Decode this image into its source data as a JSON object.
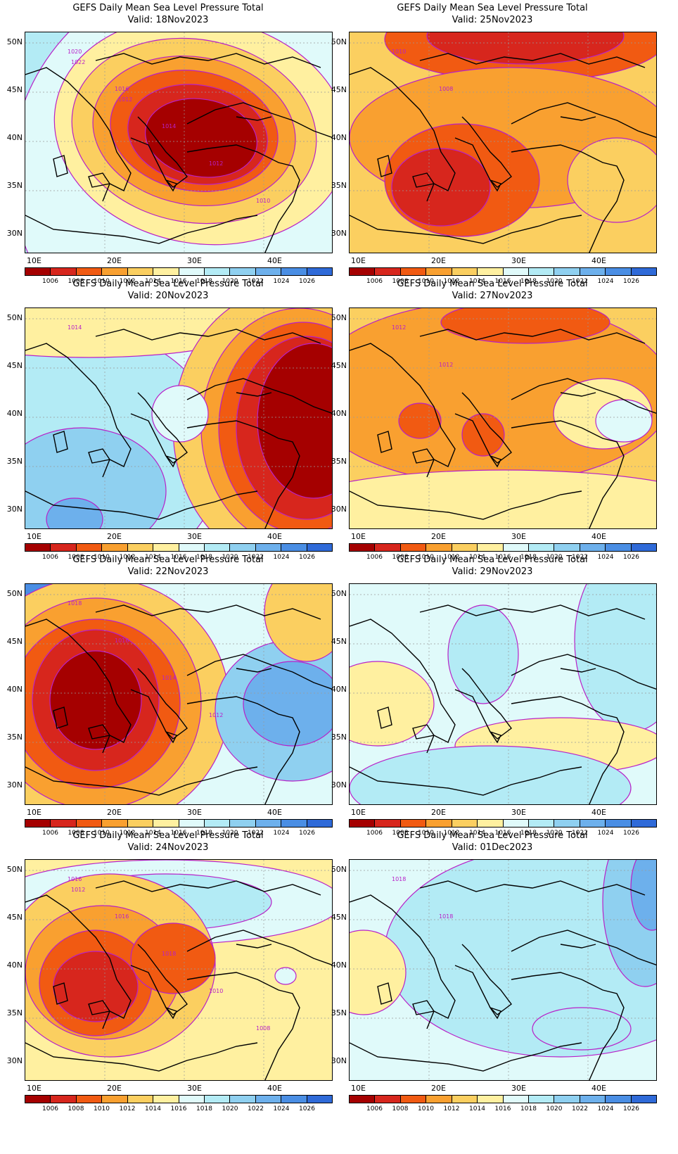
{
  "panels": [
    {
      "title": "GEFS Daily Mean Sea Level Pressure Total",
      "valid": "Valid: 18Nov2023",
      "labels": [
        "1020",
        "1016",
        "1014",
        "1012",
        "1010",
        "1022",
        "1012"
      ]
    },
    {
      "title": "GEFS Daily Mean Sea Level Pressure Total",
      "valid": "Valid: 25Nov2023",
      "labels": [
        "1010",
        "1008"
      ]
    },
    {
      "title": "GEFS Daily Mean Sea Level Pressure Total",
      "valid": "Valid: 20Nov2023",
      "labels": [
        "1014"
      ]
    },
    {
      "title": "GEFS Daily Mean Sea Level Pressure Total",
      "valid": "Valid: 27Nov2023",
      "labels": [
        "1012",
        "1012"
      ]
    },
    {
      "title": "GEFS Daily Mean Sea Level Pressure Total",
      "valid": "Valid: 22Nov2023",
      "labels": [
        "1018",
        "1016",
        "1014",
        "1012"
      ]
    },
    {
      "title": "GEFS Daily Mean Sea Level Pressure Total",
      "valid": "Valid: 29Nov2023",
      "labels": []
    },
    {
      "title": "GEFS Daily Mean Sea Level Pressure Total",
      "valid": "Valid: 24Nov2023",
      "labels": [
        "1016",
        "1016",
        "1018",
        "1010",
        "1008",
        "1012"
      ]
    },
    {
      "title": "GEFS Daily Mean Sea Level Pressure Total",
      "valid": "Valid: 01Dec2023",
      "labels": [
        "1018",
        "1018"
      ]
    }
  ],
  "axes": {
    "lat_labels": [
      "50N",
      "45N",
      "40N",
      "35N",
      "30N"
    ],
    "lon_labels": [
      "10E",
      "20E",
      "30E",
      "40E"
    ]
  },
  "colorbar": {
    "labels": [
      "1006",
      "1008",
      "1010",
      "1012",
      "1014",
      "1016",
      "1018",
      "1020",
      "1022",
      "1024",
      "1026"
    ],
    "colors": [
      "#a50000",
      "#d7261d",
      "#f15a12",
      "#f9a030",
      "#fbcf60",
      "#fff0a0",
      "#e0fafa",
      "#b3ebf5",
      "#8fd0f0",
      "#6db0ec",
      "#4a8ee4",
      "#2f6ad8"
    ]
  },
  "contour_color": "#b820c8"
}
